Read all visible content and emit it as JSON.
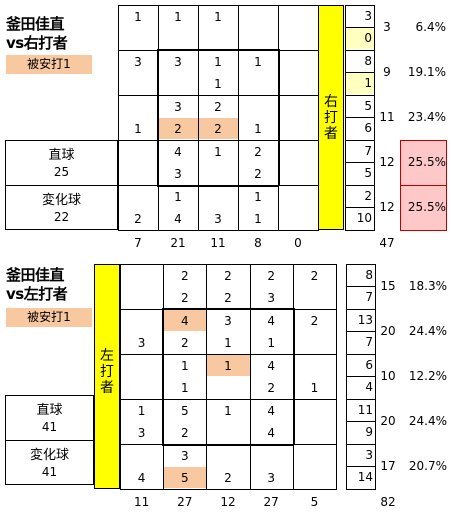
{
  "sections": [
    {
      "title": [
        "釜田佳直",
        "vs右打者"
      ],
      "badge": "被安打1",
      "bar_label": [
        "右",
        "打",
        "者"
      ],
      "pitch_labels": [
        {
          "name": "直球",
          "count": "25"
        },
        {
          "name": "変化球",
          "count": "22"
        }
      ],
      "grid": [
        [
          {
            "top": "1",
            "bottom": ""
          },
          {
            "top": "1",
            "bottom": ""
          },
          {
            "top": "1",
            "bottom": ""
          },
          {
            "top": "",
            "bottom": ""
          },
          {
            "top": "",
            "bottom": ""
          }
        ],
        [
          {
            "top": "3",
            "bottom": ""
          },
          {
            "top": "3",
            "bottom": ""
          },
          {
            "top": "1",
            "bottom": "1"
          },
          {
            "top": "1",
            "bottom": ""
          },
          {
            "top": "",
            "bottom": ""
          }
        ],
        [
          {
            "top": "",
            "bottom": "1"
          },
          {
            "top": "3",
            "bottom": "2",
            "hl_bottom": true
          },
          {
            "top": "2",
            "bottom": "2",
            "hl_bottom": true
          },
          {
            "top": "",
            "bottom": "1"
          },
          {
            "top": "",
            "bottom": ""
          }
        ],
        [
          {
            "top": "",
            "bottom": ""
          },
          {
            "top": "4",
            "bottom": "3"
          },
          {
            "top": "1",
            "bottom": ""
          },
          {
            "top": "2",
            "bottom": "2"
          },
          {
            "top": "",
            "bottom": ""
          }
        ],
        [
          {
            "top": "",
            "bottom": "2"
          },
          {
            "top": "1",
            "bottom": "4"
          },
          {
            "top": "",
            "bottom": "3"
          },
          {
            "top": "1",
            "bottom": "1"
          },
          {
            "top": "",
            "bottom": ""
          }
        ]
      ],
      "col_totals": [
        "7",
        "21",
        "11",
        "8",
        "0"
      ],
      "rows": [
        {
          "a": "3",
          "b": "0",
          "hl_a": false,
          "hl_b": true,
          "total": "3",
          "pct": "6.4%",
          "hl_pct": false
        },
        {
          "a": "8",
          "b": "1",
          "hl_a": false,
          "hl_b": true,
          "total": "9",
          "pct": "19.1%",
          "hl_pct": false
        },
        {
          "a": "5",
          "b": "6",
          "hl_a": false,
          "hl_b": false,
          "total": "11",
          "pct": "23.4%",
          "hl_pct": false
        },
        {
          "a": "7",
          "b": "5",
          "hl_a": false,
          "hl_b": false,
          "total": "12",
          "pct": "25.5%",
          "hl_pct": true
        },
        {
          "a": "2",
          "b": "10",
          "hl_a": false,
          "hl_b": false,
          "total": "12",
          "pct": "25.5%",
          "hl_pct": true
        }
      ],
      "grand_total": "47"
    },
    {
      "title": [
        "釜田佳直",
        "vs左打者"
      ],
      "badge": "被安打1",
      "bar_label": [
        "左",
        "打",
        "者"
      ],
      "pitch_labels": [
        {
          "name": "直球",
          "count": "41"
        },
        {
          "name": "変化球",
          "count": "41"
        }
      ],
      "grid": [
        [
          {
            "top": "",
            "bottom": ""
          },
          {
            "top": "2",
            "bottom": "2"
          },
          {
            "top": "2",
            "bottom": "2"
          },
          {
            "top": "2",
            "bottom": "3"
          },
          {
            "top": "2",
            "bottom": ""
          }
        ],
        [
          {
            "top": "",
            "bottom": "3"
          },
          {
            "top": "4",
            "bottom": "2",
            "hl_top": true
          },
          {
            "top": "3",
            "bottom": "1"
          },
          {
            "top": "4",
            "bottom": "1"
          },
          {
            "top": "2",
            "bottom": ""
          }
        ],
        [
          {
            "top": "",
            "bottom": ""
          },
          {
            "top": "1",
            "bottom": "1"
          },
          {
            "top": "1",
            "bottom": "",
            "hl_top": true
          },
          {
            "top": "4",
            "bottom": "2"
          },
          {
            "top": "",
            "bottom": "1"
          }
        ],
        [
          {
            "top": "1",
            "bottom": "3"
          },
          {
            "top": "5",
            "bottom": "2"
          },
          {
            "top": "1",
            "bottom": ""
          },
          {
            "top": "4",
            "bottom": "4"
          },
          {
            "top": "",
            "bottom": ""
          }
        ],
        [
          {
            "top": "",
            "bottom": "4"
          },
          {
            "top": "3",
            "bottom": "5",
            "hl_bottom": true
          },
          {
            "top": "",
            "bottom": "2"
          },
          {
            "top": "",
            "bottom": "3"
          },
          {
            "top": "",
            "bottom": ""
          }
        ]
      ],
      "col_totals": [
        "11",
        "27",
        "12",
        "27",
        "5"
      ],
      "rows": [
        {
          "a": "8",
          "b": "7",
          "hl_a": false,
          "hl_b": false,
          "total": "15",
          "pct": "18.3%",
          "hl_pct": false
        },
        {
          "a": "13",
          "b": "7",
          "hl_a": false,
          "hl_b": false,
          "total": "20",
          "pct": "24.4%",
          "hl_pct": false
        },
        {
          "a": "6",
          "b": "4",
          "hl_a": false,
          "hl_b": false,
          "total": "10",
          "pct": "12.2%",
          "hl_pct": false
        },
        {
          "a": "11",
          "b": "9",
          "hl_a": false,
          "hl_b": false,
          "total": "20",
          "pct": "24.4%",
          "hl_pct": false
        },
        {
          "a": "3",
          "b": "14",
          "hl_a": false,
          "hl_b": false,
          "total": "17",
          "pct": "20.7%",
          "hl_pct": false
        }
      ],
      "grand_total": "82"
    }
  ],
  "colors": {
    "highlight": "#f8c8a0",
    "bar": "#ffff00",
    "note": "#ffffc0",
    "pct_highlight": "#ffc8c8"
  }
}
